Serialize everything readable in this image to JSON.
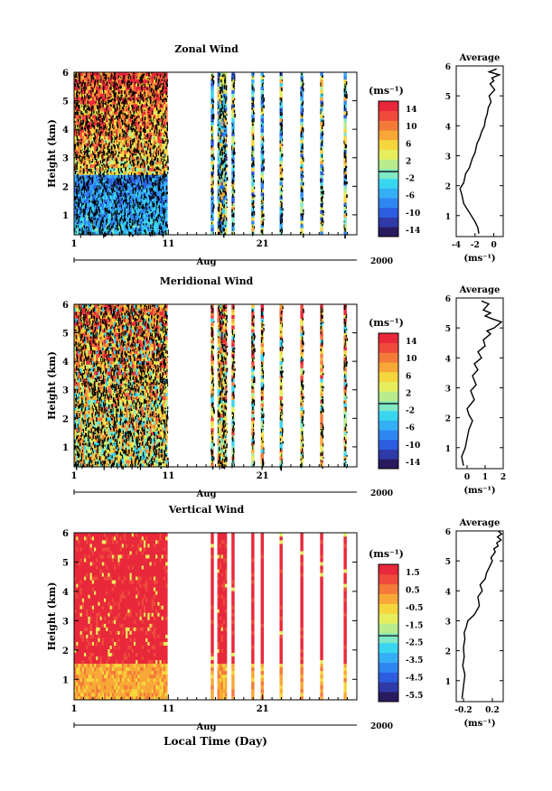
{
  "panels": [
    {
      "title": "Zonal Wind",
      "ylabel": "Height (km)",
      "yticks": [
        "1",
        "2",
        "3",
        "4",
        "5",
        "6"
      ],
      "xticks": [
        "1",
        "11",
        "21"
      ],
      "month": "Aug",
      "year": "2000",
      "colorbar": {
        "unit": "(ms⁻¹)",
        "ticks": [
          "14",
          "10",
          "6",
          "2",
          "-2",
          "-6",
          "-10",
          "-14"
        ]
      },
      "profile": {
        "title": "Average",
        "xticks": [
          "-4",
          "-2",
          "0"
        ],
        "xunit": "(ms⁻¹)",
        "yticks": [
          "1",
          "2",
          "3",
          "4",
          "5",
          "6"
        ]
      }
    },
    {
      "title": "Meridional Wind",
      "ylabel": "Height (km)",
      "yticks": [
        "1",
        "2",
        "3",
        "4",
        "5",
        "6"
      ],
      "xticks": [
        "1",
        "11",
        "21"
      ],
      "month": "Aug",
      "year": "2000",
      "colorbar": {
        "unit": "(ms⁻¹)",
        "ticks": [
          "14",
          "10",
          "6",
          "2",
          "-2",
          "-6",
          "-10",
          "-14"
        ]
      },
      "profile": {
        "title": "Average",
        "xticks": [
          "0",
          "1",
          "2"
        ],
        "xunit": "(ms⁻¹)",
        "yticks": [
          "1",
          "2",
          "3",
          "4",
          "5",
          "6"
        ]
      }
    },
    {
      "title": "Vertical Wind",
      "ylabel": "Height (km)",
      "yticks": [
        "1",
        "2",
        "3",
        "4",
        "5",
        "6"
      ],
      "xticks": [
        "1",
        "11",
        "21"
      ],
      "month": "Aug",
      "year": "2000",
      "xlabel": "Local Time (Day)",
      "colorbar": {
        "unit": "(ms⁻¹)",
        "ticks": [
          "1.5",
          "0.5",
          "-0.5",
          "-1.5",
          "-2.5",
          "-3.5",
          "-4.5",
          "-5.5"
        ]
      },
      "profile": {
        "title": "Average",
        "xticks": [
          "-0.2",
          "0.2"
        ],
        "xunit": "(ms⁻¹)",
        "yticks": [
          "1",
          "2",
          "3",
          "4",
          "5",
          "6"
        ]
      }
    }
  ],
  "chart_data": [
    {
      "type": "heatmap",
      "title": "Zonal Wind",
      "ylabel": "Height (km)",
      "xlabel": "Aug 2000",
      "ylim": [
        0.3,
        6
      ],
      "xlim": [
        1,
        31
      ],
      "data_day_ranges": [
        [
          1,
          10.9
        ],
        [
          15.5,
          15.8
        ],
        [
          16.2,
          17.2
        ],
        [
          17.7,
          18
        ],
        [
          19.8,
          20.1
        ],
        [
          20.8,
          21.1
        ],
        [
          22.8,
          23.1
        ],
        [
          25,
          25.3
        ],
        [
          27.1,
          27.4
        ],
        [
          29.6,
          29.9
        ]
      ],
      "colorbar": {
        "min": -16,
        "max": 16,
        "ticks": [
          14,
          10,
          6,
          2,
          -2,
          -6,
          -10,
          -14
        ]
      }
    },
    {
      "type": "line",
      "title": "Average",
      "xlim": [
        -4,
        1
      ],
      "ylim": [
        0.3,
        6
      ],
      "x": [
        -1.6,
        -1.7,
        -2.0,
        -2.6,
        -3.2,
        -3.4,
        -3.6,
        -3.2,
        -3.0,
        -2.6,
        -2.3,
        -2.0,
        -1.8,
        -1.5,
        -1.3,
        -1.0,
        -0.9,
        -0.7,
        -0.6,
        -0.3,
        -0.5,
        0.1,
        -0.4,
        0.0,
        -0.2,
        0.6,
        -0.5,
        0.3
      ],
      "y": [
        0.4,
        0.6,
        0.8,
        1.1,
        1.4,
        1.7,
        1.9,
        2.1,
        2.4,
        2.6,
        2.9,
        3.1,
        3.4,
        3.6,
        3.8,
        4.0,
        4.2,
        4.4,
        4.6,
        4.8,
        5.0,
        5.2,
        5.4,
        5.5,
        5.6,
        5.7,
        5.8,
        5.9
      ]
    },
    {
      "type": "heatmap",
      "title": "Meridional Wind",
      "ylabel": "Height (km)",
      "xlabel": "Aug 2000",
      "ylim": [
        0.3,
        6
      ],
      "xlim": [
        1,
        31
      ],
      "data_day_ranges": [
        [
          1,
          10.9
        ],
        [
          15.5,
          15.8
        ],
        [
          16.2,
          17.2
        ],
        [
          17.7,
          18
        ],
        [
          19.8,
          20.1
        ],
        [
          20.8,
          21.1
        ],
        [
          22.8,
          23.1
        ],
        [
          25,
          25.3
        ],
        [
          27.1,
          27.4
        ],
        [
          29.6,
          29.9
        ]
      ],
      "colorbar": {
        "min": -16,
        "max": 16,
        "ticks": [
          14,
          10,
          6,
          2,
          -2,
          -6,
          -10,
          -14
        ]
      }
    },
    {
      "type": "line",
      "title": "Average",
      "xlim": [
        -0.6,
        2.0
      ],
      "ylim": [
        0.3,
        6
      ],
      "x": [
        -0.2,
        -0.3,
        -0.1,
        0.0,
        0.1,
        0.3,
        0.1,
        0.0,
        0.4,
        0.2,
        0.5,
        0.3,
        0.6,
        0.4,
        0.8,
        0.6,
        1.0,
        0.9,
        1.3,
        1.1,
        1.5,
        1.9,
        1.4,
        1.0,
        1.3,
        0.9,
        1.2,
        0.8
      ],
      "y": [
        0.4,
        0.7,
        1.0,
        1.3,
        1.6,
        1.9,
        2.1,
        2.3,
        2.6,
        2.9,
        3.1,
        3.4,
        3.6,
        3.8,
        4.0,
        4.2,
        4.4,
        4.6,
        4.8,
        4.9,
        5.0,
        5.2,
        5.3,
        5.4,
        5.5,
        5.6,
        5.8,
        5.9
      ]
    },
    {
      "type": "heatmap",
      "title": "Vertical Wind",
      "ylabel": "Height (km)",
      "xlabel": "Local Time (Day)",
      "ylim": [
        0.3,
        6
      ],
      "xlim": [
        1,
        31
      ],
      "data_day_ranges": [
        [
          1,
          10.9
        ],
        [
          15.5,
          15.8
        ],
        [
          16.2,
          17.2
        ],
        [
          17.7,
          18
        ],
        [
          19.8,
          20.1
        ],
        [
          20.8,
          21.1
        ],
        [
          22.8,
          23.1
        ],
        [
          25,
          25.3
        ],
        [
          27.1,
          27.4
        ],
        [
          29.6,
          29.9
        ]
      ],
      "colorbar": {
        "min": -6,
        "max": 2,
        "ticks": [
          1.5,
          0.5,
          -0.5,
          -1.5,
          -2.5,
          -3.5,
          -4.5,
          -5.5
        ]
      }
    },
    {
      "type": "line",
      "title": "Average",
      "xlim": [
        -0.3,
        0.35
      ],
      "ylim": [
        0.3,
        6
      ],
      "x": [
        -0.22,
        -0.2,
        -0.18,
        -0.21,
        -0.19,
        -0.2,
        -0.18,
        -0.19,
        -0.16,
        -0.14,
        -0.05,
        0.02,
        0.0,
        0.06,
        0.03,
        0.1,
        0.12,
        0.16,
        0.2,
        0.18,
        0.24,
        0.22,
        0.28,
        0.26,
        0.32,
        0.27,
        0.33,
        0.28
      ],
      "y": [
        0.4,
        0.8,
        1.2,
        1.5,
        1.8,
        2.1,
        2.4,
        2.6,
        2.8,
        3.0,
        3.2,
        3.5,
        3.8,
        4.0,
        4.2,
        4.4,
        4.6,
        4.8,
        5.0,
        5.1,
        5.3,
        5.4,
        5.5,
        5.6,
        5.7,
        5.8,
        5.9,
        6.0
      ]
    }
  ],
  "colors": {
    "scale": [
      "#2a1a5e",
      "#2f3aa8",
      "#2c5de0",
      "#2f86f2",
      "#34aef5",
      "#3ad6f0",
      "#7fe8c4",
      "#b8ec8c",
      "#e6ee5c",
      "#f6d63e",
      "#f8a836",
      "#f47a3a",
      "#ef4a3c",
      "#e8283a"
    ]
  }
}
